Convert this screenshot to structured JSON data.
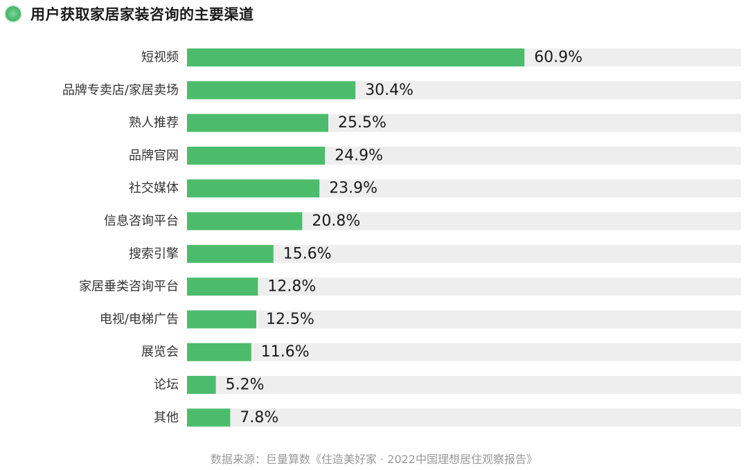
{
  "title": "用户获取家居家装咨询的主要渠道",
  "source": "数据来源：巨量算数《住造美好家 · 2022中国理想居住观察报告》",
  "colors": {
    "bar": "#4cbc6c",
    "track": "#eeeeee",
    "label": "#333333",
    "value": "#1a1a1a"
  },
  "chart_data": {
    "type": "bar",
    "orientation": "horizontal",
    "title": "用户获取家居家装咨询的主要渠道",
    "categories": [
      "短视频",
      "品牌专卖店/家居卖场",
      "熟人推荐",
      "品牌官网",
      "社交媒体",
      "信息咨询平台",
      "搜索引擎",
      "家居垂类咨询平台",
      "电视/电梯广告",
      "展览会",
      "论坛",
      "其他"
    ],
    "values": [
      60.9,
      30.4,
      25.5,
      24.9,
      23.9,
      20.8,
      15.6,
      12.8,
      12.5,
      11.6,
      5.2,
      7.8
    ],
    "value_labels": [
      "60.9%",
      "30.4%",
      "25.5%",
      "24.9%",
      "23.9%",
      "20.8%",
      "15.6%",
      "12.8%",
      "12.5%",
      "11.6%",
      "5.2%",
      "7.8%"
    ],
    "xlim": [
      0,
      100
    ],
    "unit": "%",
    "grid": false,
    "legend": "none"
  }
}
